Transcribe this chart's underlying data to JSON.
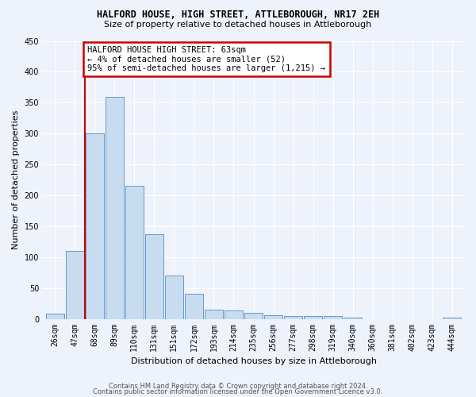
{
  "title": "HALFORD HOUSE, HIGH STREET, ATTLEBOROUGH, NR17 2EH",
  "subtitle": "Size of property relative to detached houses in Attleborough",
  "xlabel": "Distribution of detached houses by size in Attleborough",
  "ylabel": "Number of detached properties",
  "bar_labels": [
    "26sqm",
    "47sqm",
    "68sqm",
    "89sqm",
    "110sqm",
    "131sqm",
    "151sqm",
    "172sqm",
    "193sqm",
    "214sqm",
    "235sqm",
    "256sqm",
    "277sqm",
    "298sqm",
    "319sqm",
    "340sqm",
    "360sqm",
    "381sqm",
    "402sqm",
    "423sqm",
    "444sqm"
  ],
  "bar_values": [
    8,
    110,
    300,
    360,
    215,
    137,
    70,
    40,
    15,
    13,
    10,
    6,
    5,
    4,
    4,
    2,
    0,
    0,
    0,
    0,
    2
  ],
  "bar_color": "#c8dcf0",
  "bar_edge_color": "#6699cc",
  "highlight_index": 2,
  "highlight_color": "#cc0000",
  "annotation_title": "HALFORD HOUSE HIGH STREET: 63sqm",
  "annotation_line1": "← 4% of detached houses are smaller (52)",
  "annotation_line2": "95% of semi-detached houses are larger (1,215) →",
  "annotation_box_facecolor": "#ffffff",
  "annotation_box_edgecolor": "#cc0000",
  "ylim": [
    0,
    450
  ],
  "yticks": [
    0,
    50,
    100,
    150,
    200,
    250,
    300,
    350,
    400,
    450
  ],
  "footer1": "Contains HM Land Registry data © Crown copyright and database right 2024.",
  "footer2": "Contains public sector information licensed under the Open Government Licence v3.0.",
  "background_color": "#eef2fb",
  "grid_color": "#ffffff",
  "title_fontsize": 8.5,
  "subtitle_fontsize": 8,
  "tick_fontsize": 7,
  "ylabel_fontsize": 8,
  "xlabel_fontsize": 8,
  "footer_fontsize": 6,
  "annot_fontsize": 7.5
}
